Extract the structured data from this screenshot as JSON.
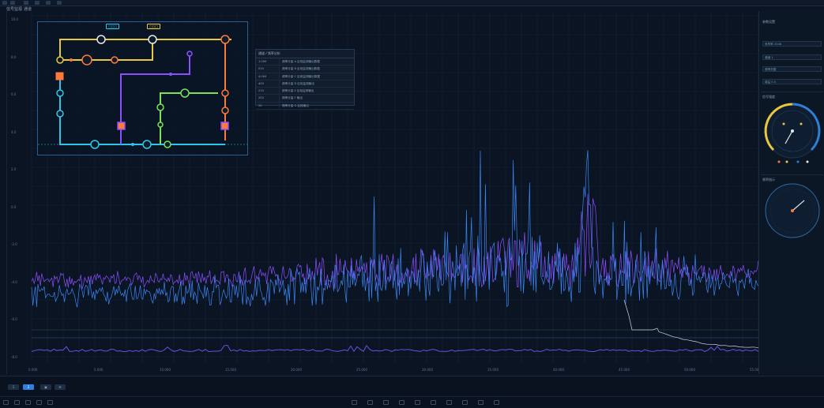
{
  "window": {
    "title": "信号监视",
    "tab": "通道"
  },
  "table": {
    "header": "通道 / 频率分析",
    "rows": [
      {
        "id": "1.000",
        "desc": "频率分量 A 区段监测输出数据"
      },
      {
        "id": "010",
        "desc": "频率分量 B 区段监测输出数据"
      },
      {
        "id": "4.000",
        "desc": "频率分量 C 区段监测输出数据"
      },
      {
        "id": "400",
        "desc": "频率分量 D 区段监测输出"
      },
      {
        "id": "210",
        "desc": "频率分量 E 区段监测输出"
      },
      {
        "id": "200",
        "desc": "频率分量 F 输出"
      },
      {
        "id": "20",
        "desc": "频率分量 G 区段输出"
      }
    ]
  },
  "circuit": {
    "tag_left": "□□□",
    "tag_right": "□□□"
  },
  "right_panel": {
    "section1": "参数设置",
    "fields": [
      "采样率 2048",
      "通道 1",
      "频率范围",
      "增益 0.5"
    ],
    "gauge1_title": "信号强度",
    "gauge2_title": "频率指示"
  },
  "chart_data": {
    "type": "line",
    "title": "",
    "xlabel": "",
    "ylabel": "",
    "x_ticks": [
      "0.000",
      "5.000",
      "10.000",
      "15.000",
      "20.000",
      "25.000",
      "30.000",
      "35.000",
      "40.000",
      "45.000",
      "50.000",
      "55.000",
      "60.000"
    ],
    "y_ticks": [
      "10.0",
      "8.0",
      "6.0",
      "4.0",
      "2.0",
      "0.0",
      "-2.0",
      "-4.0",
      "-6.0",
      "-8.0"
    ],
    "ylim": [
      -10,
      10
    ],
    "series": [
      {
        "color": "#3d8cff",
        "description": "blue spectrum trace with tall central peaks"
      },
      {
        "color": "#8a4fff",
        "description": "purple spectrum trace with peak near center-right"
      }
    ],
    "grid": true
  },
  "bottom_bar": {
    "buttons": [
      "1",
      "2",
      "▣",
      "⚙"
    ]
  },
  "colors": {
    "blue": "#3d8cff",
    "purple": "#8a4fff",
    "cyan": "#2ec6e8",
    "yellow": "#e8c840",
    "orange": "#ff7a3a",
    "green": "#7be05a",
    "bg": "#0b1422"
  }
}
